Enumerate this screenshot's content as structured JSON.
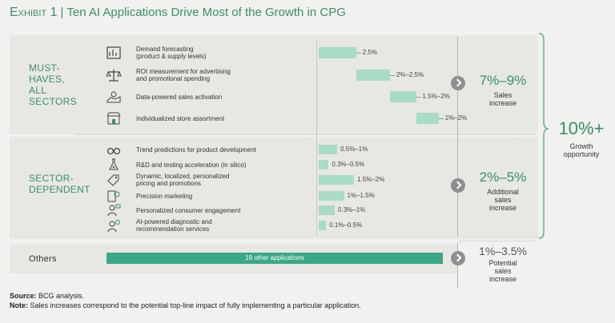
{
  "title": {
    "exhibit": "Exhibit 1",
    "separator": "|",
    "text": "Ten AI Applications Drive Most of the Growth in CPG"
  },
  "chart_data": {
    "type": "bar",
    "title": "Ten AI Applications Drive Most of the Growth in CPG",
    "groups": [
      {
        "name": "MUST-HAVES, ALL SECTORS",
        "name_lines": [
          "MUST-",
          "HAVES,",
          "ALL",
          "SECTORS"
        ],
        "layout": "waterfall",
        "subtotal": "7%–9%",
        "subtotal_label": "Sales increase",
        "subtotal_label_lines": [
          "Sales",
          "increase"
        ],
        "items": [
          {
            "label_lines": [
              "Demand forecasting",
              "(product & supply levels)"
            ],
            "icon": "forecast-chart-icon",
            "value_label": "2.5%",
            "low": 2.5,
            "high": 2.5
          },
          {
            "label_lines": [
              "ROI measurement for advertising",
              "and promotional spending"
            ],
            "icon": "balance-scale-icon",
            "value_label": "2%–2.5%",
            "low": 2.0,
            "high": 2.5
          },
          {
            "label_lines": [
              "Data-powered sales activation"
            ],
            "icon": "map-pin-icon",
            "value_label": "1.5%–2%",
            "low": 1.5,
            "high": 2.0
          },
          {
            "label_lines": [
              "Individualized store assortment"
            ],
            "icon": "storefront-icon",
            "value_label": "1%–2%",
            "low": 1.0,
            "high": 2.0
          }
        ]
      },
      {
        "name": "SECTOR-DEPENDENT",
        "name_lines": [
          "SECTOR-",
          "DEPENDENT"
        ],
        "layout": "bar",
        "subtotal": "2%–5%",
        "subtotal_label": "Additional sales increase",
        "subtotal_label_lines": [
          "Additional",
          "sales",
          "increase"
        ],
        "items": [
          {
            "label_lines": [
              "Trend predictions for product development"
            ],
            "icon": "binoculars-icon",
            "value_label": "0.5%–1%",
            "low": 0.5,
            "high": 1.0
          },
          {
            "label_lines": [
              "R&D and testing acceleration (in silico)"
            ],
            "icon": "lab-flask-icon",
            "value_label": "0.3%–0.5%",
            "low": 0.3,
            "high": 0.5
          },
          {
            "label_lines": [
              "Dynamic, localized, personalized",
              "pricing and promotions"
            ],
            "icon": "price-tag-icon",
            "value_label": "1.5%–2%",
            "low": 1.5,
            "high": 2.0
          },
          {
            "label_lines": [
              "Precision marketing"
            ],
            "icon": "target-device-icon",
            "value_label": "1%–1.5%",
            "low": 1.0,
            "high": 1.5
          },
          {
            "label_lines": [
              "Personalized consumer engagement"
            ],
            "icon": "person-chat-icon",
            "value_label": "0.3%–1%",
            "low": 0.3,
            "high": 1.0
          },
          {
            "label_lines": [
              "AI-powered diagnostic and",
              "recommendation services"
            ],
            "icon": "person-bulb-icon",
            "value_label": "0.1%–0.5%",
            "low": 0.1,
            "high": 0.5
          }
        ]
      }
    ],
    "others": {
      "name": "Others",
      "bar_label": "19 other applications",
      "subtotal": "1%–3.5%",
      "subtotal_label_lines": [
        "Potential",
        "sales",
        "increase"
      ]
    },
    "total": {
      "value": "10%+",
      "label_lines": [
        "Growth",
        "opportunity"
      ]
    }
  },
  "colors": {
    "accent": "#3a8f6a",
    "bar_light": "#a9dcc4",
    "bar_dark": "#3aa886"
  },
  "footnotes": {
    "source_label": "Source:",
    "source_text": " BCG analysis.",
    "note_label": "Note:",
    "note_text": " Sales increases correspond to the potential top-line impact of fully implementing a particular application."
  }
}
